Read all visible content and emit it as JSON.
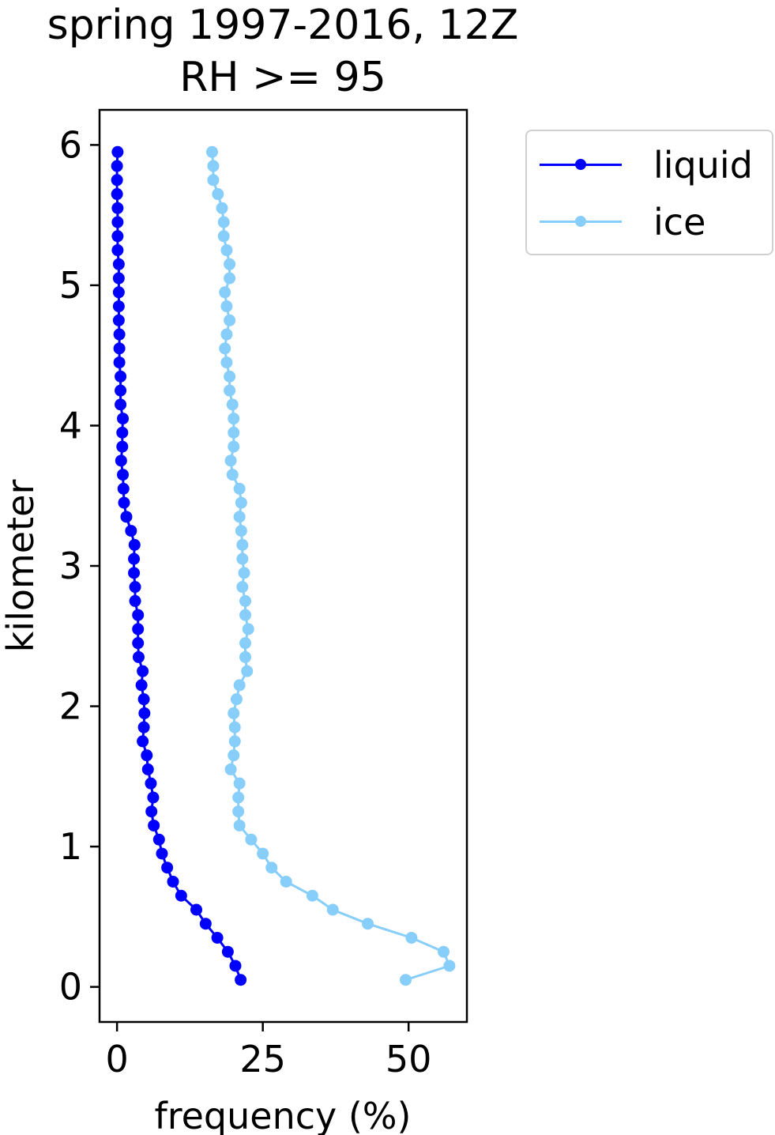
{
  "chart_data": {
    "type": "line",
    "title": "spring 1997-2016, 12Z",
    "subtitle": "RH >= 95",
    "xlabel": "frequency (%)",
    "ylabel": "kilometer",
    "xlim": [
      -3,
      60
    ],
    "ylim": [
      -0.25,
      6.25
    ],
    "xticks": [
      0,
      25,
      50
    ],
    "yticks": [
      0,
      1,
      2,
      3,
      4,
      5,
      6
    ],
    "grid": false,
    "legend_position": "outside-right-top",
    "series": [
      {
        "name": "liquid",
        "color": "#0000ff",
        "y": [
          0.05,
          0.15,
          0.25,
          0.35,
          0.45,
          0.55,
          0.65,
          0.75,
          0.85,
          0.95,
          1.05,
          1.15,
          1.25,
          1.35,
          1.45,
          1.55,
          1.65,
          1.75,
          1.85,
          1.95,
          2.05,
          2.15,
          2.25,
          2.35,
          2.45,
          2.55,
          2.65,
          2.75,
          2.85,
          2.95,
          3.05,
          3.15,
          3.25,
          3.35,
          3.45,
          3.55,
          3.65,
          3.75,
          3.85,
          3.95,
          4.05,
          4.15,
          4.25,
          4.35,
          4.45,
          4.55,
          4.65,
          4.75,
          4.85,
          4.95,
          5.05,
          5.15,
          5.25,
          5.35,
          5.45,
          5.55,
          5.65,
          5.75,
          5.85,
          5.95
        ],
        "x": [
          21.2,
          20.3,
          19.0,
          17.2,
          15.2,
          13.6,
          11.0,
          9.6,
          8.6,
          7.7,
          7.2,
          6.3,
          5.9,
          6.2,
          5.8,
          5.3,
          5.1,
          4.4,
          4.6,
          4.7,
          4.6,
          4.2,
          4.4,
          3.7,
          3.6,
          3.6,
          3.6,
          3.1,
          3.1,
          2.9,
          2.9,
          3.0,
          2.4,
          1.6,
          1.2,
          1.1,
          1.0,
          0.7,
          0.9,
          0.9,
          1.0,
          0.6,
          0.6,
          0.6,
          0.4,
          0.4,
          0.4,
          0.3,
          0.3,
          0.3,
          0.3,
          0.3,
          0.1,
          0.1,
          0.1,
          0.1,
          0.0,
          0.0,
          0.0,
          0.1
        ]
      },
      {
        "name": "ice",
        "color": "#87cefa",
        "y": [
          0.05,
          0.15,
          0.25,
          0.35,
          0.45,
          0.55,
          0.65,
          0.75,
          0.85,
          0.95,
          1.05,
          1.15,
          1.25,
          1.35,
          1.45,
          1.55,
          1.65,
          1.75,
          1.85,
          1.95,
          2.05,
          2.15,
          2.25,
          2.35,
          2.45,
          2.55,
          2.65,
          2.75,
          2.85,
          2.95,
          3.05,
          3.15,
          3.25,
          3.35,
          3.45,
          3.55,
          3.65,
          3.75,
          3.85,
          3.95,
          4.05,
          4.15,
          4.25,
          4.35,
          4.45,
          4.55,
          4.65,
          4.75,
          4.85,
          4.95,
          5.05,
          5.15,
          5.25,
          5.35,
          5.45,
          5.55,
          5.65,
          5.75,
          5.85,
          5.95
        ],
        "x": [
          49.5,
          57.0,
          56.0,
          50.5,
          43.0,
          37.0,
          33.5,
          29.0,
          26.5,
          25.0,
          23.0,
          21.0,
          20.8,
          20.8,
          21.0,
          19.5,
          20.0,
          20.2,
          20.2,
          20.0,
          20.5,
          21.0,
          22.3,
          22.0,
          22.0,
          22.5,
          22.0,
          22.0,
          21.5,
          21.8,
          21.5,
          21.5,
          21.3,
          21.0,
          21.3,
          21.0,
          19.8,
          19.5,
          20.0,
          20.0,
          20.0,
          19.8,
          19.3,
          19.3,
          18.8,
          18.5,
          18.8,
          19.3,
          18.8,
          18.5,
          19.3,
          19.3,
          18.8,
          18.3,
          18.3,
          18.0,
          17.3,
          16.5,
          16.5,
          16.3
        ]
      }
    ]
  }
}
